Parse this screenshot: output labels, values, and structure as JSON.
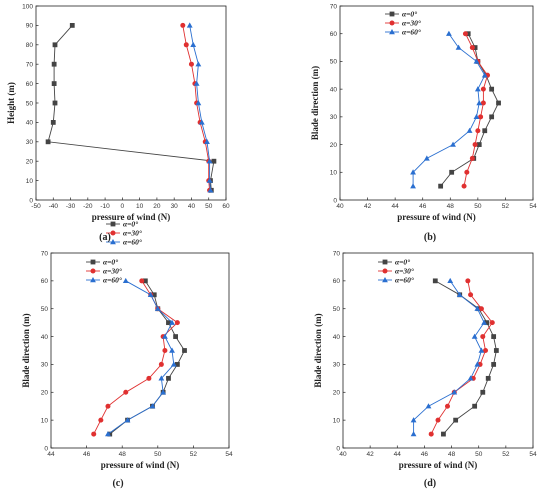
{
  "chart_data": [
    {
      "type": "line",
      "panel_label": "(a)",
      "xlabel": "pressure of wind (N)",
      "ylabel": "Height (m)",
      "xlim": [
        -50,
        60
      ],
      "ylim": [
        0,
        100
      ],
      "xticks": [
        -50,
        -40,
        -30,
        -20,
        -10,
        0,
        10,
        20,
        30,
        40,
        50,
        60
      ],
      "yticks": [
        0,
        10,
        20,
        30,
        40,
        50,
        60,
        70,
        80,
        90,
        100
      ],
      "legend": "top-center",
      "series": [
        {
          "name": "α=0°",
          "color": "#444444",
          "marker": "square",
          "x": [
            51.5,
            51,
            53,
            -43,
            -40,
            -39,
            -39.5,
            -39.5,
            -39,
            -29
          ],
          "y": [
            5,
            10,
            20,
            30,
            40,
            50,
            60,
            70,
            80,
            90
          ]
        },
        {
          "name": "α=30°",
          "color": "#e03030",
          "marker": "circle",
          "x": [
            50.5,
            50,
            50,
            48,
            45,
            43,
            42,
            40,
            37,
            35
          ],
          "y": [
            5,
            10,
            20,
            30,
            40,
            50,
            60,
            70,
            80,
            90
          ]
        },
        {
          "name": "α=60°",
          "color": "#2a6fd0",
          "marker": "triangle",
          "x": [
            51,
            50.5,
            50.5,
            49,
            46,
            44,
            43,
            44,
            41,
            39
          ],
          "y": [
            5,
            10,
            20,
            30,
            40,
            50,
            60,
            70,
            80,
            90
          ]
        }
      ]
    },
    {
      "type": "line",
      "panel_label": "(b)",
      "xlabel": "pressure of wind (N)",
      "ylabel": "Blade direction (m)",
      "xlim": [
        40,
        54
      ],
      "ylim": [
        0,
        70
      ],
      "xticks": [
        40,
        42,
        44,
        46,
        48,
        50,
        52,
        54
      ],
      "yticks": [
        0,
        10,
        20,
        30,
        40,
        50,
        60,
        70
      ],
      "legend": "top-left",
      "series": [
        {
          "name": "α=0°",
          "color": "#444444",
          "marker": "square",
          "x": [
            47.3,
            48.1,
            49.7,
            50.1,
            50.5,
            51,
            51.5,
            51,
            50.6,
            50,
            49.8,
            49.3
          ],
          "y": [
            5,
            10,
            15,
            20,
            25,
            30,
            35,
            40,
            45,
            50,
            55,
            60
          ]
        },
        {
          "name": "α=30°",
          "color": "#e03030",
          "marker": "circle",
          "x": [
            49,
            49.2,
            49.6,
            49.8,
            50,
            50.2,
            50.4,
            50.4,
            50.7,
            50,
            49.6,
            49.1
          ],
          "y": [
            5,
            10,
            15,
            20,
            25,
            30,
            35,
            40,
            45,
            50,
            55,
            60
          ]
        },
        {
          "name": "α=60°",
          "color": "#2a6fd0",
          "marker": "triangle",
          "x": [
            45.3,
            45.3,
            46.3,
            48.2,
            49.4,
            49.9,
            50.1,
            50,
            50.5,
            49.9,
            48.6,
            47.9
          ],
          "y": [
            5,
            10,
            15,
            20,
            25,
            30,
            35,
            40,
            45,
            50,
            55,
            60
          ]
        }
      ]
    },
    {
      "type": "line",
      "panel_label": "(c)",
      "xlabel": "pressure of wind (N)",
      "ylabel": "Blade direction (m)",
      "xlim": [
        44,
        54
      ],
      "ylim": [
        0,
        70
      ],
      "xticks": [
        44,
        46,
        48,
        50,
        52,
        54
      ],
      "yticks": [
        0,
        10,
        20,
        30,
        40,
        50,
        60,
        70
      ],
      "legend": "top-left",
      "series": [
        {
          "name": "α=0°",
          "color": "#444444",
          "marker": "square",
          "x": [
            47.3,
            48.3,
            49.7,
            50.3,
            50.6,
            51.1,
            51.5,
            51,
            50.6,
            50,
            49.8,
            49.3
          ],
          "y": [
            5,
            10,
            15,
            20,
            25,
            30,
            35,
            40,
            45,
            50,
            55,
            60
          ]
        },
        {
          "name": "α=30°",
          "color": "#e03030",
          "marker": "circle",
          "x": [
            46.4,
            46.8,
            47.2,
            48.2,
            49.5,
            50.2,
            50.4,
            50.3,
            51.1,
            50,
            49.6,
            49.1
          ],
          "y": [
            5,
            10,
            15,
            20,
            25,
            30,
            35,
            40,
            45,
            50,
            55,
            60
          ]
        },
        {
          "name": "α=60°",
          "color": "#2a6fd0",
          "marker": "triangle",
          "x": [
            47.2,
            48.3,
            49.7,
            50.3,
            50.2,
            50.9,
            50.8,
            50.4,
            50.8,
            50,
            49.6,
            48.2
          ],
          "y": [
            5,
            10,
            15,
            20,
            25,
            30,
            35,
            40,
            45,
            50,
            55,
            60
          ]
        }
      ]
    },
    {
      "type": "line",
      "panel_label": "(d)",
      "xlabel": "pressure of wind (N)",
      "ylabel": "Blade direction (m)",
      "xlim": [
        40,
        54
      ],
      "ylim": [
        0,
        70
      ],
      "xticks": [
        40,
        42,
        44,
        46,
        48,
        50,
        52,
        54
      ],
      "yticks": [
        0,
        10,
        20,
        30,
        40,
        50,
        60,
        70
      ],
      "legend": "top-left",
      "series": [
        {
          "name": "α=0°",
          "color": "#444444",
          "marker": "square",
          "x": [
            47.4,
            48.3,
            49.7,
            50.3,
            50.7,
            51.1,
            51.3,
            51.1,
            50.6,
            50,
            48.6,
            46.8
          ],
          "y": [
            5,
            10,
            15,
            20,
            25,
            30,
            35,
            40,
            45,
            50,
            55,
            60
          ]
        },
        {
          "name": "α=30°",
          "color": "#e03030",
          "marker": "circle",
          "x": [
            46.5,
            47,
            47.7,
            48.2,
            49.6,
            50.1,
            50.5,
            50.3,
            51,
            50.2,
            49.4,
            49.2
          ],
          "y": [
            5,
            10,
            15,
            20,
            25,
            30,
            35,
            40,
            45,
            50,
            55,
            60
          ]
        },
        {
          "name": "α=60°",
          "color": "#2a6fd0",
          "marker": "triangle",
          "x": [
            45.2,
            45.2,
            46.3,
            48.2,
            49.4,
            49.9,
            50.2,
            49.7,
            50.4,
            49.9,
            48.6,
            47.9
          ],
          "y": [
            5,
            10,
            15,
            20,
            25,
            30,
            35,
            40,
            45,
            50,
            55,
            60
          ]
        }
      ]
    }
  ]
}
